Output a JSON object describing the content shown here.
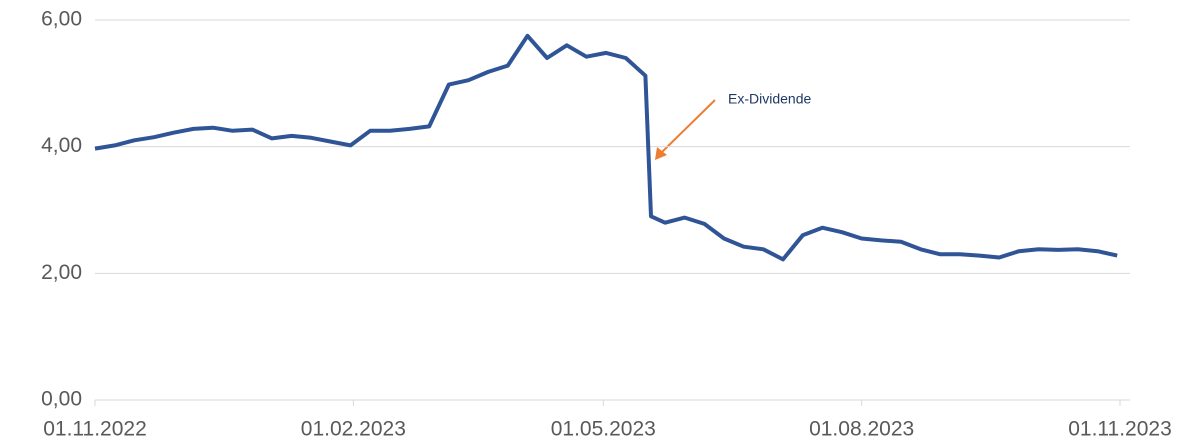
{
  "chart_data": {
    "type": "line",
    "x": [
      "01.11.2022",
      "08.11.2022",
      "15.11.2022",
      "22.11.2022",
      "29.11.2022",
      "06.12.2022",
      "13.12.2022",
      "20.12.2022",
      "27.12.2022",
      "03.01.2023",
      "10.01.2023",
      "17.01.2023",
      "24.01.2023",
      "31.01.2023",
      "07.02.2023",
      "14.02.2023",
      "21.02.2023",
      "28.02.2023",
      "07.03.2023",
      "14.03.2023",
      "21.03.2023",
      "28.03.2023",
      "04.04.2023",
      "11.04.2023",
      "18.04.2023",
      "25.04.2023",
      "02.05.2023",
      "09.05.2023",
      "16.05.2023",
      "18.05.2023",
      "23.05.2023",
      "30.05.2023",
      "06.06.2023",
      "13.06.2023",
      "20.06.2023",
      "27.06.2023",
      "04.07.2023",
      "11.07.2023",
      "18.07.2023",
      "25.07.2023",
      "01.08.2023",
      "08.08.2023",
      "15.08.2023",
      "22.08.2023",
      "29.08.2023",
      "05.09.2023",
      "12.09.2023",
      "19.09.2023",
      "26.09.2023",
      "03.10.2023",
      "10.10.2023",
      "17.10.2023",
      "24.10.2023",
      "31.10.2023"
    ],
    "series": [
      {
        "color": "#2f5597",
        "values": [
          3.97,
          4.02,
          4.1,
          4.15,
          4.22,
          4.28,
          4.3,
          4.25,
          4.27,
          4.13,
          4.17,
          4.14,
          4.08,
          4.02,
          4.25,
          4.25,
          4.28,
          4.32,
          4.98,
          5.05,
          5.18,
          5.28,
          5.75,
          5.4,
          5.6,
          5.42,
          5.48,
          5.4,
          5.12,
          2.9,
          2.8,
          2.88,
          2.78,
          2.55,
          2.42,
          2.38,
          2.22,
          2.6,
          2.72,
          2.65,
          2.55,
          2.52,
          2.5,
          2.38,
          2.3,
          2.3,
          2.28,
          2.25,
          2.35,
          2.38,
          2.37,
          2.38,
          2.35,
          2.28
        ]
      }
    ],
    "xlim": [
      "01.11.2022",
      "01.11.2023"
    ],
    "xticks": [
      "01.11.2022",
      "01.02.2023",
      "01.05.2023",
      "01.08.2023",
      "01.11.2023"
    ],
    "ylim": [
      0,
      6
    ],
    "yticks": [
      {
        "value": 0,
        "label": "0,00"
      },
      {
        "value": 2,
        "label": "2,00"
      },
      {
        "value": 4,
        "label": "4,00"
      },
      {
        "value": 6,
        "label": "6,00"
      }
    ],
    "grid": true,
    "annotation": "Ex-Dividende"
  }
}
